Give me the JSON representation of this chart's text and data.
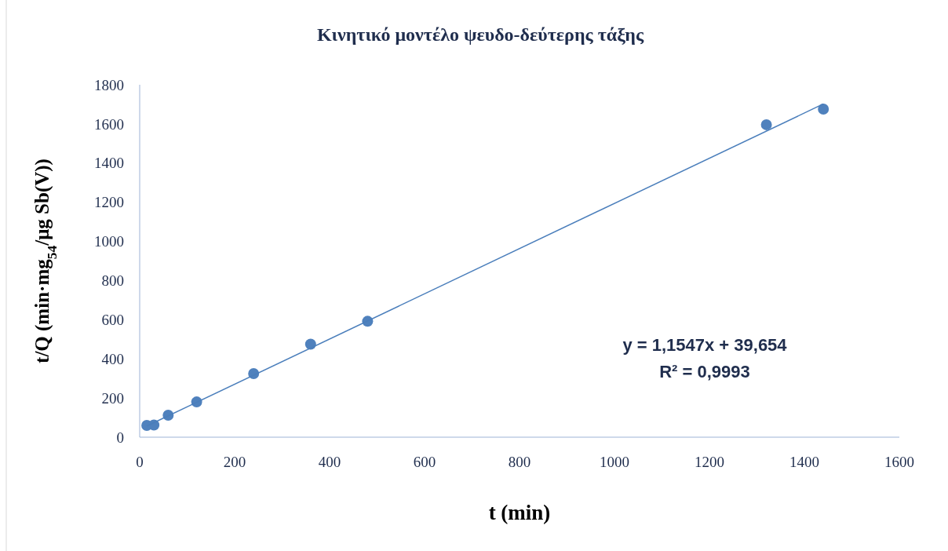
{
  "chart_data": {
    "type": "scatter",
    "title": "Κινητικό μοντέλο ψευδο-δεύτερης τάξης",
    "xlabel": "t (min)",
    "ylabel": "t/Q (min·mg$_{54}$/μg Sb(V))",
    "xlim": [
      0,
      1600
    ],
    "xticks": [
      0,
      200,
      400,
      600,
      800,
      1000,
      1200,
      1400,
      1600
    ],
    "ylim": [
      0,
      1800
    ],
    "yticks": [
      0,
      200,
      400,
      600,
      800,
      1000,
      1200,
      1400,
      1600,
      1800
    ],
    "grid": false,
    "marker": "circle",
    "series": [
      {
        "color": "#4f81bd",
        "x": [
          15,
          30,
          60,
          120,
          240,
          360,
          480,
          1320,
          1440
        ],
        "values": [
          60,
          62,
          112,
          180,
          325,
          475,
          592,
          1596,
          1676
        ]
      },
      {
        "type": "line",
        "color": "#4a7ebb",
        "marker": "none",
        "line_style": "solid",
        "x": [
          15,
          1440
        ],
        "values": [
          57,
          1702
        ]
      }
    ],
    "annotations": [
      "y = 1,1547x + 39,654",
      "R² = 0,9993"
    ]
  }
}
